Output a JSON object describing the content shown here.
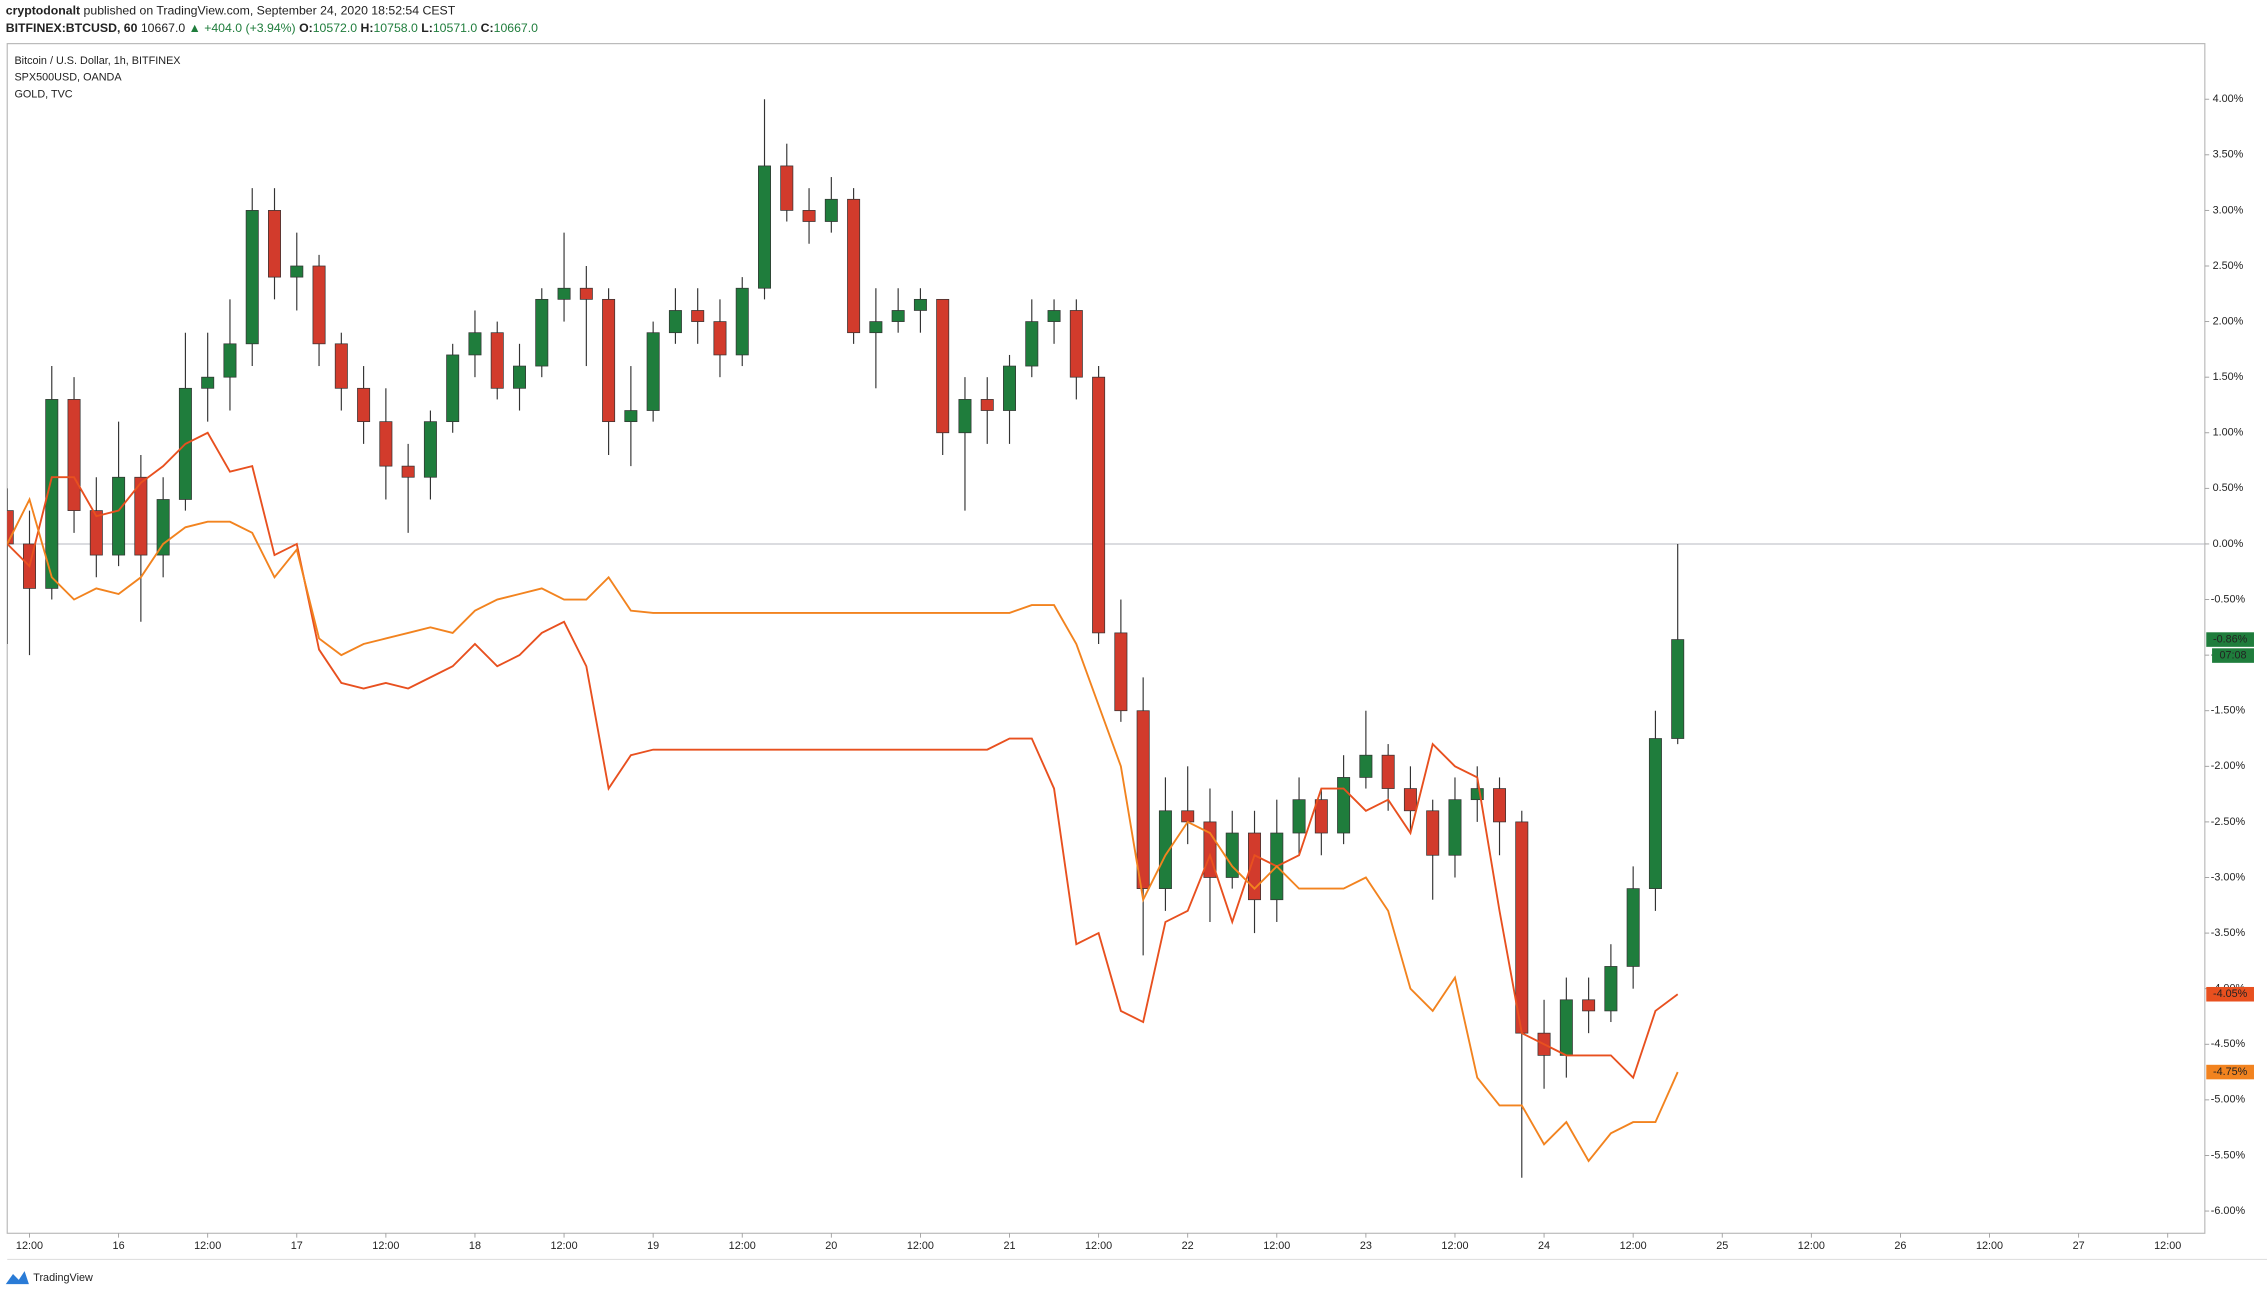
{
  "header": {
    "publisher": "cryptodonalt",
    "published": "published on TradingView.com, September 24, 2020 18:52:54 CEST",
    "symbol": "BITFINEX:BTCUSD, 60",
    "last": "10667.0",
    "change": "▲ +404.0 (+3.94%)",
    "ohlc": [
      {
        "label": "O:",
        "value": "10572.0"
      },
      {
        "label": "H:",
        "value": "10758.0"
      },
      {
        "label": "L:",
        "value": "10571.0"
      },
      {
        "label": "C:",
        "value": "10667.0"
      }
    ]
  },
  "footer": {
    "brand": "TradingView"
  },
  "chart_data": {
    "type": "candlestick",
    "grid": false,
    "x": [
      "15 09:00",
      "15 12:00",
      "15 15:00",
      "15 18:00",
      "15 21:00",
      "16 00:00",
      "16 03:00",
      "16 06:00",
      "16 09:00",
      "16 12:00",
      "16 15:00",
      "16 18:00",
      "16 21:00",
      "17 00:00",
      "17 03:00",
      "17 06:00",
      "17 09:00",
      "17 12:00",
      "17 15:00",
      "17 18:00",
      "17 21:00",
      "18 00:00",
      "18 03:00",
      "18 06:00",
      "18 09:00",
      "18 12:00",
      "18 15:00",
      "18 18:00",
      "18 21:00",
      "19 00:00",
      "19 03:00",
      "19 06:00",
      "19 09:00",
      "19 12:00",
      "19 15:00",
      "19 18:00",
      "19 21:00",
      "20 00:00",
      "20 03:00",
      "20 06:00",
      "20 09:00",
      "20 12:00",
      "20 15:00",
      "20 18:00",
      "20 21:00",
      "21 00:00",
      "21 03:00",
      "21 06:00",
      "21 09:00",
      "21 12:00",
      "21 15:00",
      "21 18:00",
      "21 21:00",
      "22 00:00",
      "22 03:00",
      "22 06:00",
      "22 09:00",
      "22 12:00",
      "22 15:00",
      "22 18:00",
      "22 21:00",
      "23 00:00",
      "23 03:00",
      "23 06:00",
      "23 09:00",
      "23 12:00",
      "23 15:00",
      "23 18:00",
      "23 21:00",
      "24 00:00",
      "24 03:00",
      "24 06:00",
      "24 09:00",
      "24 12:00",
      "24 15:00",
      "24 18:00"
    ],
    "xlim": [
      "15 09:00",
      "27 17:00"
    ],
    "xticks": [
      {
        "value": "15 12:00",
        "label": "12:00"
      },
      {
        "value": "16 00:00",
        "label": "16"
      },
      {
        "value": "16 12:00",
        "label": "12:00"
      },
      {
        "value": "17 00:00",
        "label": "17"
      },
      {
        "value": "17 12:00",
        "label": "12:00"
      },
      {
        "value": "18 00:00",
        "label": "18"
      },
      {
        "value": "18 12:00",
        "label": "12:00"
      },
      {
        "value": "19 00:00",
        "label": "19"
      },
      {
        "value": "19 12:00",
        "label": "12:00"
      },
      {
        "value": "20 00:00",
        "label": "20"
      },
      {
        "value": "20 12:00",
        "label": "12:00"
      },
      {
        "value": "21 00:00",
        "label": "21"
      },
      {
        "value": "21 12:00",
        "label": "12:00"
      },
      {
        "value": "22 00:00",
        "label": "22"
      },
      {
        "value": "22 12:00",
        "label": "12:00"
      },
      {
        "value": "23 00:00",
        "label": "23"
      },
      {
        "value": "23 12:00",
        "label": "12:00"
      },
      {
        "value": "24 00:00",
        "label": "24"
      },
      {
        "value": "24 12:00",
        "label": "12:00"
      },
      {
        "value": "25 00:00",
        "label": "25"
      },
      {
        "value": "25 12:00",
        "label": "12:00"
      },
      {
        "value": "26 00:00",
        "label": "26"
      },
      {
        "value": "26 12:00",
        "label": "12:00"
      },
      {
        "value": "27 00:00",
        "label": "27"
      },
      {
        "value": "27 12:00",
        "label": "12:00"
      }
    ],
    "ylim": [
      -6.2,
      4.5
    ],
    "yticks": [
      {
        "value": 4,
        "label": "4.00%"
      },
      {
        "value": 3.5,
        "label": "3.50%"
      },
      {
        "value": 3,
        "label": "3.00%"
      },
      {
        "value": 2.5,
        "label": "2.50%"
      },
      {
        "value": 2,
        "label": "2.00%"
      },
      {
        "value": 1.5,
        "label": "1.50%"
      },
      {
        "value": 1,
        "label": "1.00%"
      },
      {
        "value": 0.5,
        "label": "0.50%"
      },
      {
        "value": 0,
        "label": "0.00%"
      },
      {
        "value": -0.5,
        "label": "-0.50%"
      },
      {
        "value": -1,
        "label": "-1.00%"
      },
      {
        "value": -1.5,
        "label": "-1.50%"
      },
      {
        "value": -2,
        "label": "-2.00%"
      },
      {
        "value": -2.5,
        "label": "-2.50%"
      },
      {
        "value": -3,
        "label": "-3.00%"
      },
      {
        "value": -3.5,
        "label": "-3.50%"
      },
      {
        "value": -4,
        "label": "-4.00%"
      },
      {
        "value": -4.5,
        "label": "-4.50%"
      },
      {
        "value": -5,
        "label": "-5.00%"
      },
      {
        "value": -5.5,
        "label": "-5.50%"
      },
      {
        "value": -6,
        "label": "-6.00%"
      }
    ],
    "series": [
      {
        "name": "Bitcoin / U.S. Dollar, 1h, BITFINEX",
        "type": "candlestick",
        "up_color": "#1f7d3c",
        "down_color": "#d23b2c",
        "color": "#1f7d3c",
        "last_label": "-0.86%",
        "countdown": "07:08",
        "values": [
          [
            0.3,
            0.5,
            -0.9,
            0.0
          ],
          [
            0.0,
            0.3,
            -1.0,
            -0.4
          ],
          [
            -0.4,
            1.6,
            -0.5,
            1.3
          ],
          [
            1.3,
            1.5,
            0.1,
            0.3
          ],
          [
            0.3,
            0.6,
            -0.3,
            -0.1
          ],
          [
            -0.1,
            1.1,
            -0.2,
            0.6
          ],
          [
            0.6,
            0.8,
            -0.7,
            -0.1
          ],
          [
            -0.1,
            0.6,
            -0.3,
            0.4
          ],
          [
            0.4,
            1.9,
            0.3,
            1.4
          ],
          [
            1.4,
            1.9,
            1.1,
            1.5
          ],
          [
            1.5,
            2.2,
            1.2,
            1.8
          ],
          [
            1.8,
            3.2,
            1.6,
            3.0
          ],
          [
            3.0,
            3.2,
            2.2,
            2.4
          ],
          [
            2.4,
            2.8,
            2.1,
            2.5
          ],
          [
            2.5,
            2.6,
            1.6,
            1.8
          ],
          [
            1.8,
            1.9,
            1.2,
            1.4
          ],
          [
            1.4,
            1.6,
            0.9,
            1.1
          ],
          [
            1.1,
            1.4,
            0.4,
            0.7
          ],
          [
            0.7,
            0.9,
            0.1,
            0.6
          ],
          [
            0.6,
            1.2,
            0.4,
            1.1
          ],
          [
            1.1,
            1.8,
            1.0,
            1.7
          ],
          [
            1.7,
            2.1,
            1.5,
            1.9
          ],
          [
            1.9,
            2.0,
            1.3,
            1.4
          ],
          [
            1.4,
            1.8,
            1.2,
            1.6
          ],
          [
            1.6,
            2.3,
            1.5,
            2.2
          ],
          [
            2.2,
            2.8,
            2.0,
            2.3
          ],
          [
            2.3,
            2.5,
            1.6,
            2.2
          ],
          [
            2.2,
            2.3,
            0.8,
            1.1
          ],
          [
            1.1,
            1.6,
            0.7,
            1.2
          ],
          [
            1.2,
            2.0,
            1.1,
            1.9
          ],
          [
            1.9,
            2.3,
            1.8,
            2.1
          ],
          [
            2.1,
            2.3,
            1.8,
            2.0
          ],
          [
            2.0,
            2.2,
            1.5,
            1.7
          ],
          [
            1.7,
            2.4,
            1.6,
            2.3
          ],
          [
            2.3,
            4.0,
            2.2,
            3.4
          ],
          [
            3.4,
            3.6,
            2.9,
            3.0
          ],
          [
            3.0,
            3.2,
            2.7,
            2.9
          ],
          [
            2.9,
            3.3,
            2.8,
            3.1
          ],
          [
            3.1,
            3.2,
            1.8,
            1.9
          ],
          [
            1.9,
            2.3,
            1.4,
            2.0
          ],
          [
            2.0,
            2.3,
            1.9,
            2.1
          ],
          [
            2.1,
            2.3,
            1.9,
            2.2
          ],
          [
            2.2,
            2.2,
            0.8,
            1.0
          ],
          [
            1.0,
            1.5,
            0.3,
            1.3
          ],
          [
            1.3,
            1.5,
            0.9,
            1.2
          ],
          [
            1.2,
            1.7,
            0.9,
            1.6
          ],
          [
            1.6,
            2.2,
            1.5,
            2.0
          ],
          [
            2.0,
            2.2,
            1.8,
            2.1
          ],
          [
            2.1,
            2.2,
            1.3,
            1.5
          ],
          [
            1.5,
            1.6,
            -0.9,
            -0.8
          ],
          [
            -0.8,
            -0.5,
            -1.6,
            -1.5
          ],
          [
            -1.5,
            -1.2,
            -3.7,
            -3.1
          ],
          [
            -3.1,
            -2.1,
            -3.3,
            -2.4
          ],
          [
            -2.4,
            -2.0,
            -2.7,
            -2.5
          ],
          [
            -2.5,
            -2.2,
            -3.4,
            -3.0
          ],
          [
            -3.0,
            -2.4,
            -3.1,
            -2.6
          ],
          [
            -2.6,
            -2.4,
            -3.5,
            -3.2
          ],
          [
            -3.2,
            -2.3,
            -3.4,
            -2.6
          ],
          [
            -2.6,
            -2.1,
            -2.8,
            -2.3
          ],
          [
            -2.3,
            -2.2,
            -2.8,
            -2.6
          ],
          [
            -2.6,
            -1.9,
            -2.7,
            -2.1
          ],
          [
            -2.1,
            -1.5,
            -2.2,
            -1.9
          ],
          [
            -1.9,
            -1.8,
            -2.4,
            -2.2
          ],
          [
            -2.2,
            -2.0,
            -2.6,
            -2.4
          ],
          [
            -2.4,
            -2.3,
            -3.2,
            -2.8
          ],
          [
            -2.8,
            -2.1,
            -3.0,
            -2.3
          ],
          [
            -2.3,
            -2.0,
            -2.5,
            -2.2
          ],
          [
            -2.2,
            -2.1,
            -2.8,
            -2.5
          ],
          [
            -2.5,
            -2.4,
            -5.7,
            -4.4
          ],
          [
            -4.4,
            -4.1,
            -4.9,
            -4.6
          ],
          [
            -4.6,
            -3.9,
            -4.8,
            -4.1
          ],
          [
            -4.1,
            -3.9,
            -4.4,
            -4.2
          ],
          [
            -4.2,
            -3.6,
            -4.3,
            -3.8
          ],
          [
            -3.8,
            -2.9,
            -4.0,
            -3.1
          ],
          [
            -3.1,
            -1.5,
            -3.3,
            -1.75
          ],
          [
            -1.75,
            0.0,
            -1.8,
            -0.86
          ]
        ]
      },
      {
        "name": "SPX500USD, OANDA",
        "type": "line",
        "color": "#e8501f",
        "last_label": "-4.05%",
        "values": [
          0.0,
          -0.2,
          0.6,
          0.6,
          0.25,
          0.3,
          0.55,
          0.7,
          0.9,
          1.0,
          0.65,
          0.7,
          -0.1,
          0.0,
          -0.95,
          -1.25,
          -1.3,
          -1.25,
          -1.3,
          -1.2,
          -1.1,
          -0.9,
          -1.1,
          -1.0,
          -0.8,
          -0.7,
          -1.1,
          -2.2,
          -1.9,
          -1.85,
          -1.85,
          -1.85,
          -1.85,
          -1.85,
          -1.85,
          -1.85,
          -1.85,
          -1.85,
          -1.85,
          -1.85,
          -1.85,
          -1.85,
          -1.85,
          -1.85,
          -1.85,
          -1.75,
          -1.75,
          -2.2,
          -3.6,
          -3.5,
          -4.2,
          -4.3,
          -3.4,
          -3.3,
          -2.8,
          -3.4,
          -2.8,
          -2.9,
          -2.8,
          -2.2,
          -2.2,
          -2.4,
          -2.3,
          -2.6,
          -1.8,
          -2.0,
          -2.1,
          -3.3,
          -4.4,
          -4.5,
          -4.6,
          -4.6,
          -4.6,
          -4.8,
          -4.2,
          -4.05
        ]
      },
      {
        "name": "GOLD, TVC",
        "type": "line",
        "color": "#f2831f",
        "last_label": "-4.75%",
        "values": [
          0.0,
          0.4,
          -0.3,
          -0.5,
          -0.4,
          -0.45,
          -0.3,
          0.0,
          0.15,
          0.2,
          0.2,
          0.1,
          -0.3,
          -0.05,
          -0.85,
          -1.0,
          -0.9,
          -0.85,
          -0.8,
          -0.75,
          -0.8,
          -0.6,
          -0.5,
          -0.45,
          -0.4,
          -0.5,
          -0.5,
          -0.3,
          -0.6,
          -0.62,
          -0.62,
          -0.62,
          -0.62,
          -0.62,
          -0.62,
          -0.62,
          -0.62,
          -0.62,
          -0.62,
          -0.62,
          -0.62,
          -0.62,
          -0.62,
          -0.62,
          -0.62,
          -0.62,
          -0.55,
          -0.55,
          -0.9,
          -1.45,
          -2.0,
          -3.2,
          -2.8,
          -2.5,
          -2.6,
          -2.9,
          -3.1,
          -2.9,
          -3.1,
          -3.1,
          -3.1,
          -3.0,
          -3.3,
          -4.0,
          -4.2,
          -3.9,
          -4.8,
          -5.05,
          -5.05,
          -5.4,
          -5.2,
          -5.55,
          -5.3,
          -5.2,
          -5.2,
          -4.75
        ]
      }
    ]
  }
}
